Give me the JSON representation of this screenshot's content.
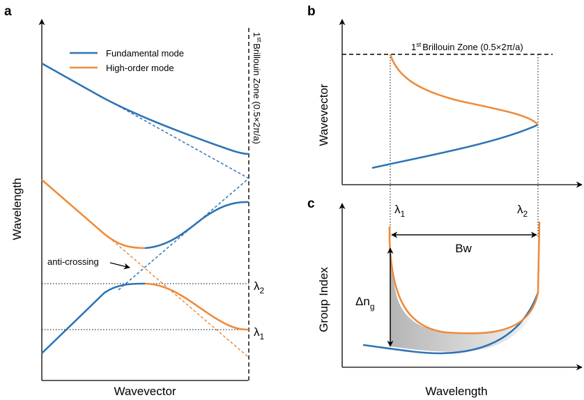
{
  "panels": {
    "a": {
      "letter": "a",
      "xlabel": "Wavevector",
      "ylabel": "Wavelength",
      "bz_label": "Brillouin Zone (0.5×2π/a)",
      "bz_sup": "st",
      "bz_num": "1",
      "legend": [
        {
          "name": "Fundamental mode",
          "color": "#2e74b5"
        },
        {
          "name": "High-order mode",
          "color": "#ee8b3a"
        }
      ],
      "anti_crossing": "anti-crossing",
      "lambda1": "λ",
      "lambda1_sub": "1",
      "lambda2": "λ",
      "lambda2_sub": "2"
    },
    "b": {
      "letter": "b",
      "ylabel": "Wavevector",
      "bz_num": "1",
      "bz_sup": "st",
      "bz_label": "Brillouin Zone (0.5×2π/a)"
    },
    "c": {
      "letter": "c",
      "xlabel": "Wavelength",
      "ylabel": "Group Index",
      "lambda1": "λ",
      "lambda1_sub": "1",
      "lambda2": "λ",
      "lambda2_sub": "2",
      "bw": "Bw",
      "dn": "Δn",
      "dn_sub": "g"
    }
  },
  "colors": {
    "fundamental": "#2e74b5",
    "high_order": "#ee8b3a"
  }
}
